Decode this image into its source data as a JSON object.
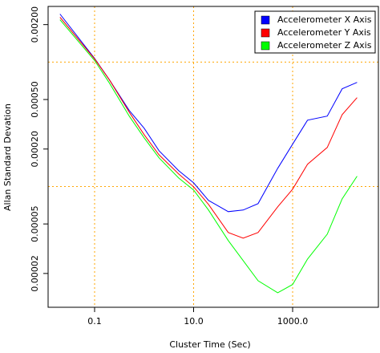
{
  "chart_data": {
    "type": "line",
    "log_x": true,
    "log_y": true,
    "x_label": "Cluster Time (Sec)",
    "y_label": "Allan Standard Devation",
    "x": [
      0.02,
      0.1,
      0.2,
      0.5,
      1,
      2,
      5,
      10,
      20,
      50,
      100,
      200,
      500,
      1000,
      2000,
      5000,
      10000,
      20000
    ],
    "series": [
      {
        "name": "Accelerometer X Axis",
        "color": "#0000ff",
        "values": [
          0.00243,
          0.00107,
          0.000718,
          0.000408,
          0.000294,
          0.000194,
          0.000134,
          0.000107,
          7.73e-05,
          6.28e-05,
          6.47e-05,
          7.28e-05,
          0.00014,
          0.000219,
          0.000341,
          0.000368,
          0.00061,
          0.000686
        ]
      },
      {
        "name": "Accelerometer Y Axis",
        "color": "#ff0000",
        "values": [
          0.00229,
          0.00106,
          0.000718,
          0.000396,
          0.000261,
          0.00018,
          0.000126,
          9.95e-05,
          7.18e-05,
          4.27e-05,
          3.85e-05,
          4.27e-05,
          6.86e-05,
          9.51e-05,
          0.000151,
          0.000206,
          0.000378,
          0.000518
        ]
      },
      {
        "name": "Accelerometer Z Axis",
        "color": "#00ff00",
        "values": [
          0.00219,
          0.00103,
          0.000676,
          0.000368,
          0.000246,
          0.00017,
          0.000117,
          9.38e-05,
          6.47e-05,
          3.68e-05,
          2.54e-05,
          1.75e-05,
          1.4e-05,
          1.63e-05,
          2.61e-05,
          4.14e-05,
          7.96e-05,
          0.000121
        ]
      }
    ],
    "xlim": [
      0.0115,
      54000
    ],
    "ylim": [
      1.07e-05,
      0.0028
    ],
    "xticks": [
      0.1,
      {
        "value": 10,
        "label": "10.0"
      },
      {
        "value": 1000,
        "label": "1000.0"
      }
    ],
    "yticks": [
      2e-05,
      5e-05,
      {
        "value": 0.0002,
        "label": "0.00020"
      },
      {
        "value": 0.0005,
        "label": "0.00050"
      },
      {
        "value": 0.002,
        "label": "0.00200"
      }
    ],
    "grid": true,
    "grid_color": "#ffa500",
    "grid_y": [
      0.0001,
      0.001
    ],
    "legend": "top-right"
  }
}
